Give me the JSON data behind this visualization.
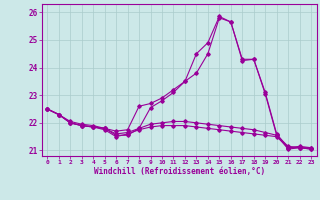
{
  "background_color": "#cce8e8",
  "line_color": "#990099",
  "grid_color": "#aacccc",
  "xlabel": "Windchill (Refroidissement éolien,°C)",
  "xlim": [
    -0.5,
    23.5
  ],
  "ylim": [
    20.8,
    26.3
  ],
  "yticks": [
    21,
    22,
    23,
    24,
    25,
    26
  ],
  "xticks": [
    0,
    1,
    2,
    3,
    4,
    5,
    6,
    7,
    8,
    9,
    10,
    11,
    12,
    13,
    14,
    15,
    16,
    17,
    18,
    19,
    20,
    21,
    22,
    23
  ],
  "line1": [
    22.5,
    22.3,
    22.0,
    21.9,
    21.85,
    21.8,
    21.7,
    21.75,
    22.6,
    22.7,
    22.9,
    23.2,
    23.5,
    23.8,
    24.5,
    25.8,
    25.65,
    24.3,
    24.3,
    23.1,
    21.6,
    21.1,
    21.15,
    21.1
  ],
  "line2": [
    22.5,
    22.3,
    22.0,
    21.9,
    21.85,
    21.8,
    21.55,
    21.55,
    21.8,
    22.55,
    22.8,
    23.1,
    23.5,
    24.5,
    24.9,
    25.85,
    25.65,
    24.25,
    24.3,
    23.05,
    21.55,
    21.05,
    21.1,
    21.05
  ],
  "line3": [
    22.5,
    22.3,
    22.0,
    21.9,
    21.85,
    21.75,
    21.5,
    21.6,
    21.75,
    21.85,
    21.9,
    21.9,
    21.9,
    21.85,
    21.8,
    21.75,
    21.7,
    21.65,
    21.6,
    21.55,
    21.5,
    21.1,
    21.1,
    21.05
  ],
  "line4": [
    22.5,
    22.3,
    22.05,
    21.95,
    21.9,
    21.8,
    21.6,
    21.65,
    21.8,
    21.95,
    22.0,
    22.05,
    22.05,
    22.0,
    21.95,
    21.9,
    21.85,
    21.8,
    21.75,
    21.65,
    21.55,
    21.15,
    21.1,
    21.1
  ]
}
